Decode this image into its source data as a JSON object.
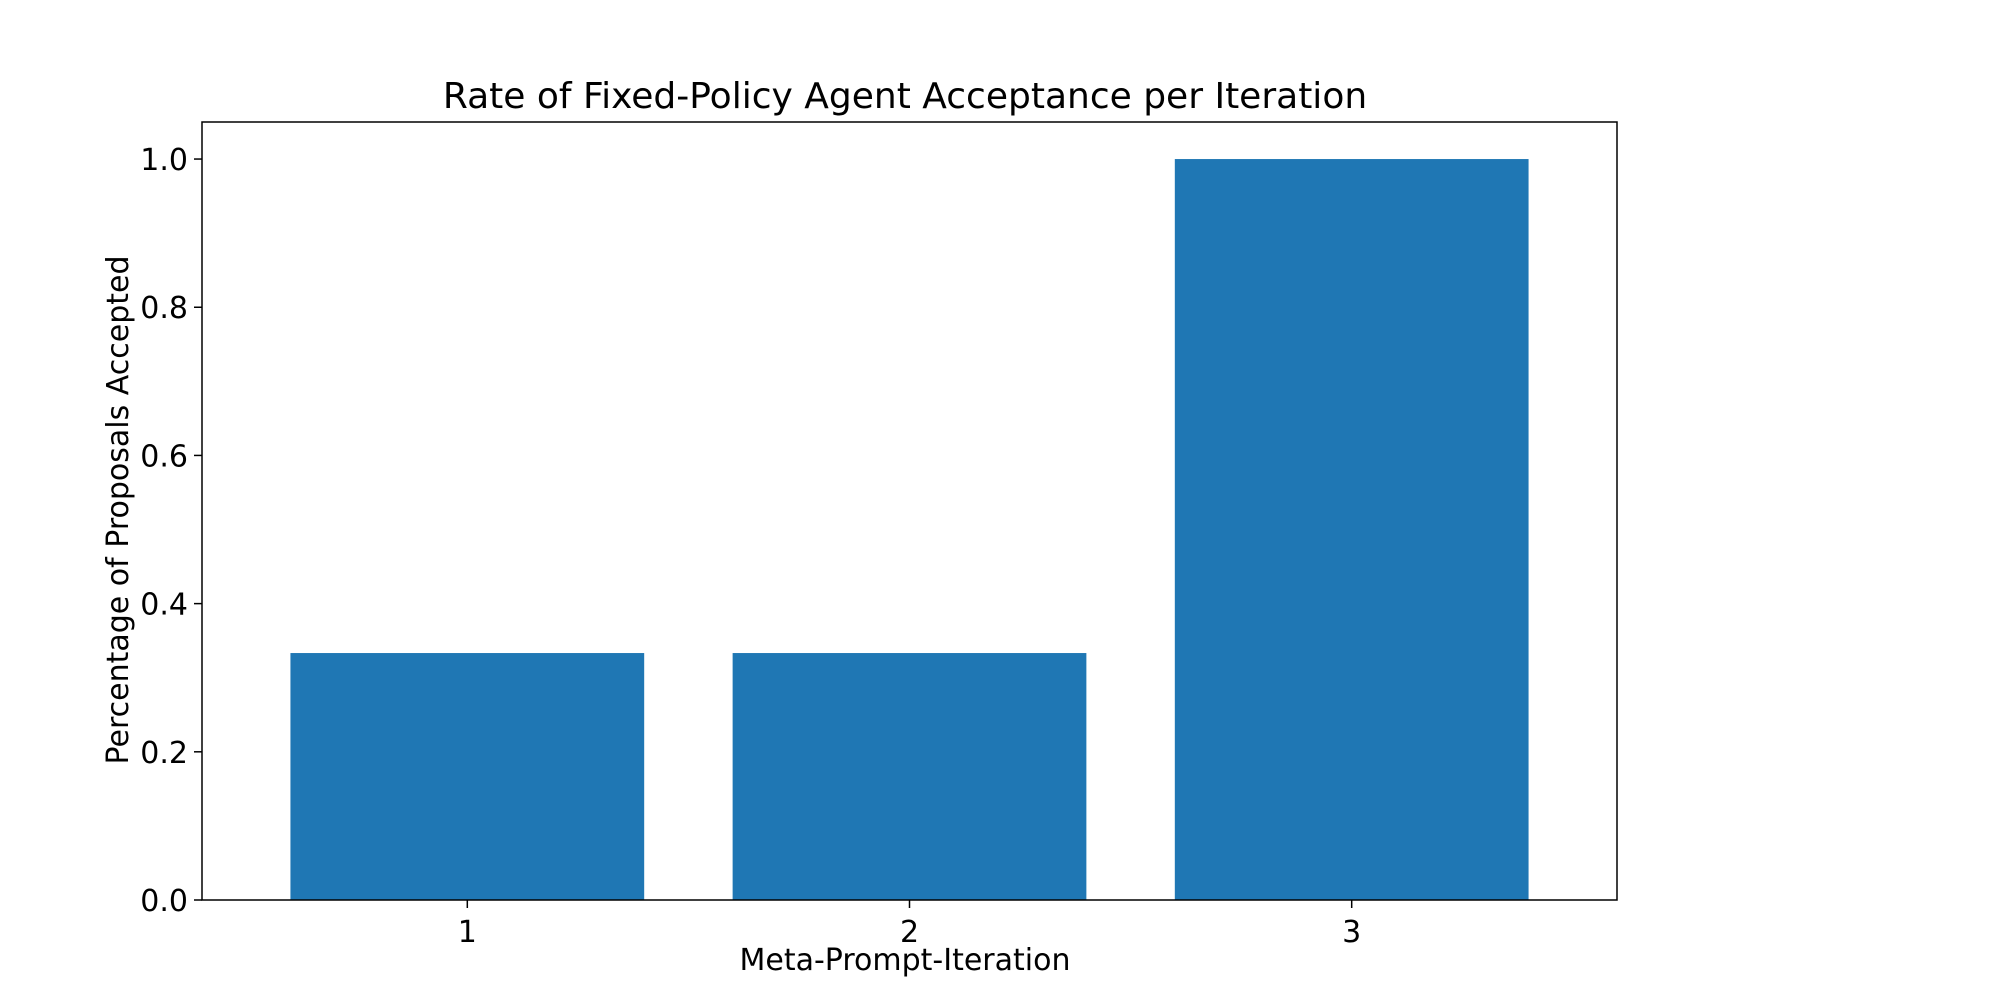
{
  "chart_data": {
    "type": "bar",
    "title": "Rate of Fixed-Policy Agent Acceptance per Iteration",
    "xlabel": "Meta-Prompt-Iteration",
    "ylabel": "Percentage of Proposals Accepted",
    "categories": [
      "1",
      "2",
      "3"
    ],
    "values": [
      0.3333,
      0.3333,
      1.0
    ],
    "ylim": [
      0,
      1.05
    ],
    "yticks": [
      0.0,
      0.2,
      0.4,
      0.6,
      0.8,
      1.0
    ],
    "ytick_labels": [
      "0.0",
      "0.2",
      "0.4",
      "0.6",
      "0.8",
      "1.0"
    ],
    "grid": false,
    "legend": "none",
    "bar_color": "#1f77b4",
    "axis_color": "#000000"
  }
}
